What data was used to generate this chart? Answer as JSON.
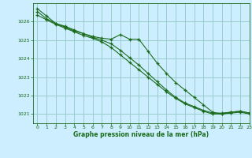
{
  "title": "Graphe pression niveau de la mer (hPa)",
  "bg_color": "#cceeff",
  "grid_color": "#99cccc",
  "line_color": "#1a6b1a",
  "marker_color": "#1a6b1a",
  "xlim": [
    -0.5,
    23
  ],
  "ylim": [
    1020.5,
    1027.0
  ],
  "yticks": [
    1021,
    1022,
    1023,
    1024,
    1025,
    1026
  ],
  "xticks": [
    0,
    1,
    2,
    3,
    4,
    5,
    6,
    7,
    8,
    9,
    10,
    11,
    12,
    13,
    14,
    15,
    16,
    17,
    18,
    19,
    20,
    21,
    22,
    23
  ],
  "series": [
    [
      1026.7,
      1026.3,
      1025.9,
      1025.75,
      1025.55,
      1025.35,
      1025.2,
      1025.1,
      1025.05,
      1025.3,
      1025.05,
      1025.05,
      1024.4,
      1023.75,
      1023.2,
      1022.7,
      1022.3,
      1021.9,
      1021.5,
      1021.1,
      1021.0,
      1021.1,
      1021.15,
      1021.05
    ],
    [
      1026.35,
      1026.1,
      1025.85,
      1025.65,
      1025.45,
      1025.25,
      1025.1,
      1024.9,
      1024.6,
      1024.2,
      1023.8,
      1023.4,
      1023.0,
      1022.6,
      1022.2,
      1021.85,
      1021.55,
      1021.35,
      1021.15,
      1021.0,
      1021.0,
      1021.05,
      1021.1,
      1021.0
    ],
    [
      1026.55,
      1026.15,
      1025.9,
      1025.7,
      1025.5,
      1025.35,
      1025.15,
      1025.0,
      1024.8,
      1024.45,
      1024.05,
      1023.65,
      1023.2,
      1022.75,
      1022.3,
      1021.9,
      1021.6,
      1021.4,
      1021.2,
      1021.05,
      1021.05,
      1021.1,
      1021.15,
      1021.05
    ]
  ],
  "figsize": [
    3.2,
    2.0
  ],
  "dpi": 100
}
